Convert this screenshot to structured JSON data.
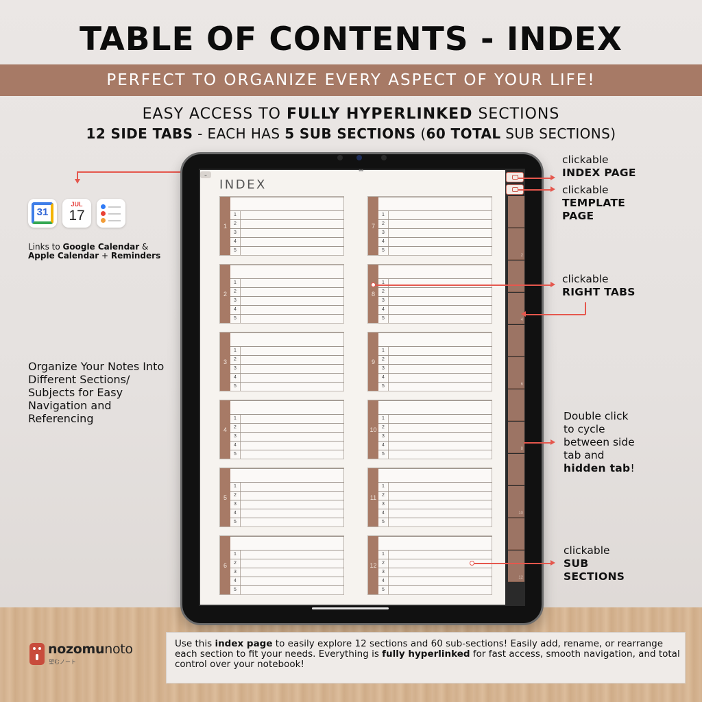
{
  "header": {
    "title": "TABLE OF CONTENTS - INDEX",
    "banner": "PERFECT TO ORGANIZE EVERY ASPECT OF YOUR LIFE!",
    "line1": {
      "a": "EASY ACCESS TO ",
      "b": "FULLY HYPERLINKED",
      "c": " SECTIONS"
    },
    "line2": {
      "a": "12 SIDE TABS",
      "b": " - EACH HAS ",
      "c": "5 SUB SECTIONS",
      "d": " (",
      "e": "60 TOTAL",
      "f": " SUB SECTIONS)"
    }
  },
  "left": {
    "gcal_day": "31",
    "acal_month": "JUL",
    "acal_day": "17",
    "links_note": {
      "a": "Links to ",
      "b": "Google Calendar",
      "c": " & ",
      "d": "Apple Calendar",
      "e": " + ",
      "f": "Reminders"
    },
    "organize_note": "Organize Your Notes Into Different Sections/ Subjects for Easy Navigation and Referencing"
  },
  "tablet": {
    "page_title": "INDEX",
    "collapse_icon": "chevron-down-icon",
    "sections_left": [
      "1",
      "2",
      "3",
      "4",
      "5",
      "6"
    ],
    "sections_right": [
      "7",
      "8",
      "9",
      "10",
      "11",
      "12"
    ],
    "sub_rows": [
      "1",
      "2",
      "3",
      "4",
      "5"
    ],
    "tab_numbers": [
      "",
      "2",
      "",
      "4",
      "",
      "6",
      "",
      "8",
      "",
      "10",
      "",
      "12"
    ]
  },
  "callouts": {
    "index": {
      "a": "clickable",
      "b": "INDEX PAGE"
    },
    "template": {
      "a": "clickable",
      "b": "TEMPLATE",
      "c": "PAGE"
    },
    "right_tabs": {
      "a": "clickable",
      "b": "RIGHT TABS"
    },
    "double": {
      "a": "Double click",
      "b": "to cycle",
      "c": "between side",
      "d": "tab and",
      "e": "hidden tab",
      "f": "!"
    },
    "sub": {
      "a": "clickable",
      "b": "SUB",
      "c": "SECTIONS"
    }
  },
  "logo": {
    "a": "nozomu",
    "b": "noto",
    "jp": "望むノート"
  },
  "footer": {
    "a": "Use this ",
    "b": "index page",
    "c": " to easily explore 12 sections and 60 sub-sections! Easily add, rename, or rearrange each section to fit your needs. Everything is ",
    "d": "fully hyperlinked",
    "e": " for fast access, smooth navigation, and total control over your notebook!"
  },
  "colors": {
    "accent": "#a77a66",
    "arrow": "#e5574d",
    "tab": "#9c7464"
  }
}
